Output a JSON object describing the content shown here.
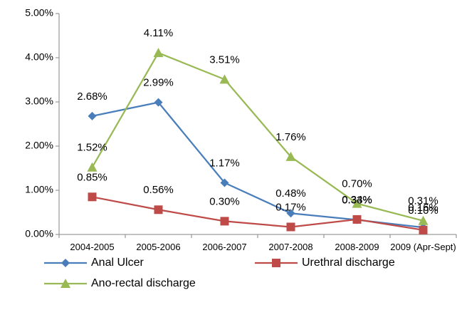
{
  "chart_data": {
    "type": "line",
    "categories": [
      "2004-2005",
      "2005-2006",
      "2006-2007",
      "2007-2008",
      "2008-2009",
      "2009 (Apr-Sept)"
    ],
    "series": [
      {
        "name": "Anal Ulcer",
        "color": "#4a7ebb",
        "marker": "diamond",
        "values": [
          2.68,
          2.99,
          1.17,
          0.48,
          0.33,
          0.16
        ],
        "value_labels": [
          "2.68%",
          "2.99%",
          "1.17%",
          "0.48%",
          "0.33%",
          "0.16%"
        ]
      },
      {
        "name": "Urethral discharge",
        "color": "#be4b48",
        "marker": "square",
        "values": [
          0.85,
          0.56,
          0.3,
          0.17,
          0.34,
          0.1
        ],
        "value_labels": [
          "0.85%",
          "0.56%",
          "0.30%",
          "0.17%",
          "0.34%",
          "0.10%"
        ]
      },
      {
        "name": "Ano-rectal discharge",
        "color": "#98b954",
        "marker": "triangle",
        "values": [
          1.52,
          4.11,
          3.51,
          1.76,
          0.7,
          0.31
        ],
        "value_labels": [
          "1.52%",
          "4.11%",
          "3.51%",
          "1.76%",
          "0.70%",
          "0.31%"
        ]
      }
    ],
    "ylim": [
      0,
      5
    ],
    "yticks": [
      {
        "value": 0,
        "label": "0.00%"
      },
      {
        "value": 1,
        "label": "1.00%"
      },
      {
        "value": 2,
        "label": "2.00%"
      },
      {
        "value": 3,
        "label": "3.00%"
      },
      {
        "value": 4,
        "label": "4.00%"
      },
      {
        "value": 5,
        "label": "5.00%"
      }
    ],
    "legend": "bottom"
  }
}
